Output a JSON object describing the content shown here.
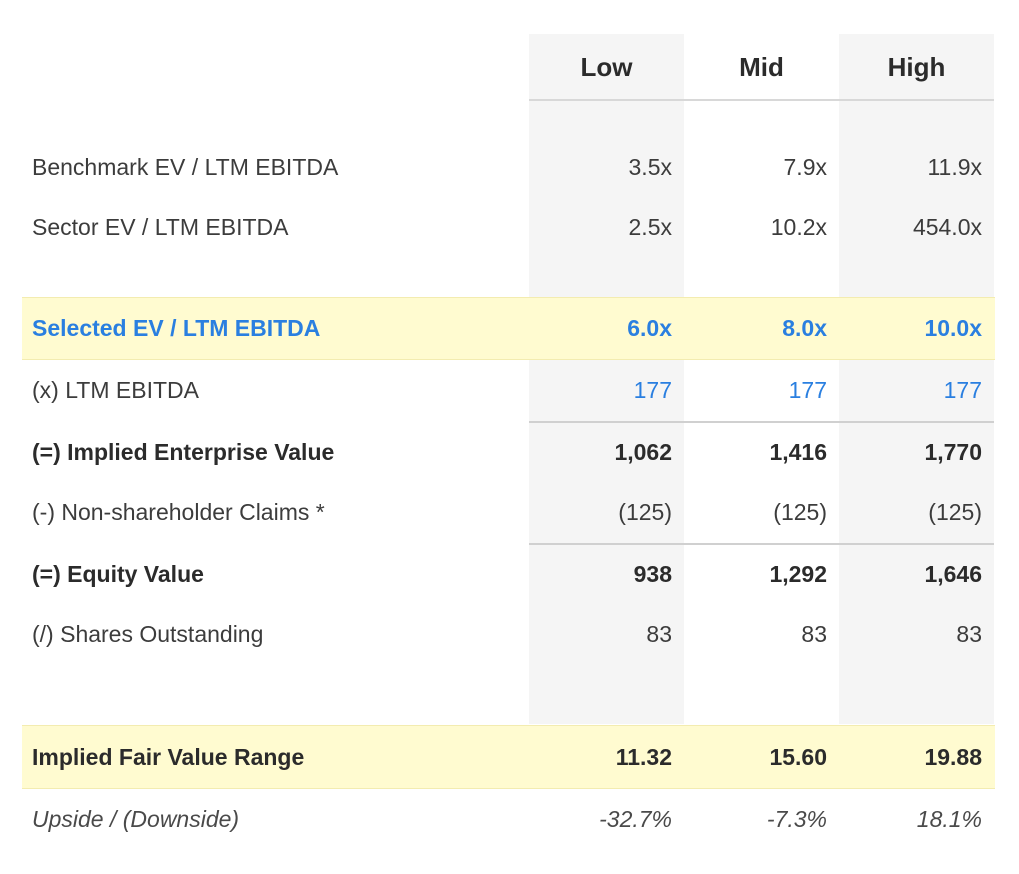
{
  "columns": {
    "low": "Low",
    "mid": "Mid",
    "high": "High"
  },
  "rows": {
    "benchmark": {
      "label": "Benchmark EV / LTM EBITDA",
      "low": "3.5x",
      "mid": "7.9x",
      "high": "11.9x"
    },
    "sector": {
      "label": "Sector EV / LTM EBITDA",
      "low": "2.5x",
      "mid": "10.2x",
      "high": "454.0x"
    },
    "selected": {
      "label": "Selected EV / LTM EBITDA",
      "low": "6.0x",
      "mid": "8.0x",
      "high": "10.0x"
    },
    "ltm_ebitda": {
      "label": "(x) LTM EBITDA",
      "low": "177",
      "mid": "177",
      "high": "177"
    },
    "implied_ev": {
      "label": "(=) Implied Enterprise Value",
      "low": "1,062",
      "mid": "1,416",
      "high": "1,770"
    },
    "claims": {
      "label": "(-) Non-shareholder Claims *",
      "low": "(125)",
      "mid": "(125)",
      "high": "(125)"
    },
    "equity_value": {
      "label": "(=) Equity Value",
      "low": "938",
      "mid": "1,292",
      "high": "1,646"
    },
    "shares": {
      "label": "(/) Shares Outstanding",
      "low": "83",
      "mid": "83",
      "high": "83"
    },
    "fair_value": {
      "label": "Implied Fair Value Range",
      "low": "11.32",
      "mid": "15.60",
      "high": "19.88"
    },
    "upside": {
      "label": "Upside / (Downside)",
      "low": "-32.7%",
      "mid": "-7.3%",
      "high": "18.1%"
    }
  },
  "colors": {
    "highlight": "#fffbd0",
    "accent_blue": "#2a7fe0",
    "column_shade": "#f5f5f5"
  }
}
